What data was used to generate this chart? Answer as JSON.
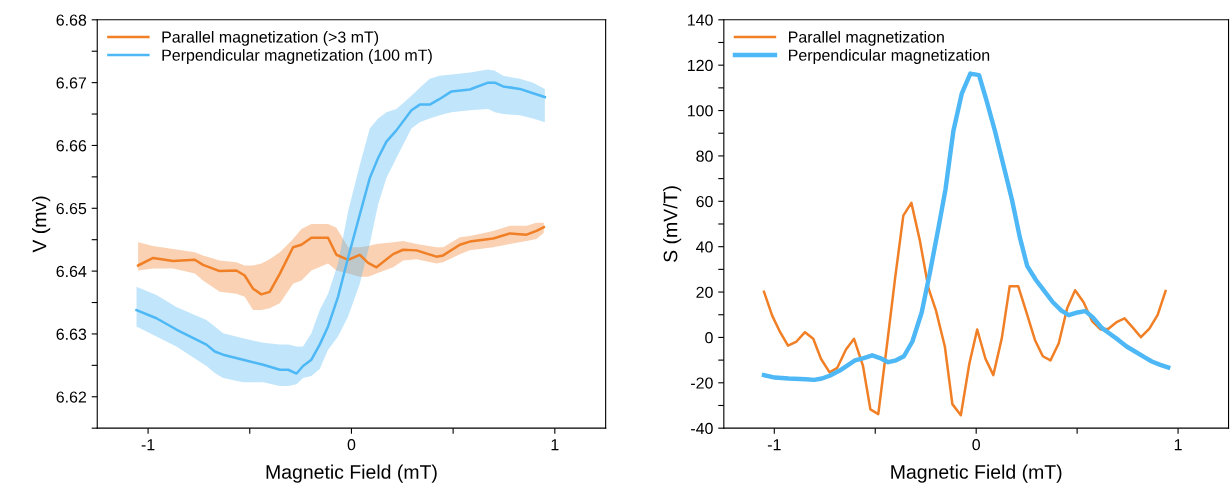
{
  "chart_data": [
    {
      "type": "line",
      "xlabel": "Magnetic Field (mT)",
      "ylabel": "V (mv)",
      "xlim": [
        -1.25,
        1.25
      ],
      "xticks": [
        {
          "value": -1,
          "label": "-1"
        },
        {
          "value": -0.5,
          "label": null
        },
        0,
        {
          "value": 0.5,
          "label": null
        },
        1
      ],
      "ylim": [
        6.615,
        6.68
      ],
      "yticks": [
        {
          "value": 6.615,
          "label": null
        },
        6.62,
        {
          "value": 6.625,
          "label": null
        },
        6.63,
        {
          "value": 6.635,
          "label": null
        },
        6.64,
        {
          "value": 6.645,
          "label": null
        },
        6.65,
        {
          "value": 6.655,
          "label": null
        },
        6.66,
        {
          "value": 6.665,
          "label": null
        },
        6.67,
        {
          "value": 6.675,
          "label": null
        },
        6.68
      ],
      "legend": "top left",
      "grid": false,
      "series": [
        {
          "name": "Parallel magnetization (>3 mT)",
          "color": "#f07f26",
          "x": [
            -1.049,
            -0.975,
            -0.877,
            -0.77,
            -0.73,
            -0.648,
            -0.566,
            -0.525,
            -0.484,
            -0.443,
            -0.402,
            -0.352,
            -0.287,
            -0.246,
            -0.197,
            -0.115,
            -0.074,
            -0.016,
            0.041,
            0.082,
            0.123,
            0.205,
            0.254,
            0.32,
            0.418,
            0.451,
            0.533,
            0.582,
            0.697,
            0.779,
            0.861,
            0.91,
            0.946
          ],
          "values": [
            6.6409,
            6.6421,
            6.6416,
            6.6418,
            6.641,
            6.64,
            6.6401,
            6.6393,
            6.6372,
            6.6363,
            6.6367,
            6.6396,
            6.6438,
            6.6442,
            6.6453,
            6.6453,
            6.6426,
            6.6418,
            6.6426,
            6.6413,
            6.6406,
            6.6427,
            6.6434,
            6.6433,
            6.6423,
            6.6425,
            6.6442,
            6.6447,
            6.6452,
            6.646,
            6.6458,
            6.6464,
            6.647
          ],
          "upper": [
            6.6446,
            6.644,
            6.6435,
            6.643,
            6.6425,
            6.6417,
            6.6414,
            6.6409,
            6.6409,
            6.6412,
            6.6419,
            6.643,
            6.6451,
            6.6467,
            6.6475,
            6.6475,
            6.6469,
            6.6438,
            6.6438,
            6.644,
            6.6443,
            6.6446,
            6.6448,
            6.6443,
            6.6438,
            6.6438,
            6.6454,
            6.6456,
            6.6464,
            6.6472,
            6.6472,
            6.6477,
            6.6477
          ],
          "lower": [
            6.6401,
            6.6404,
            6.6404,
            6.6396,
            6.6385,
            6.6367,
            6.6364,
            6.6359,
            6.6338,
            6.6338,
            6.6341,
            6.6349,
            6.638,
            6.6385,
            6.6401,
            6.6412,
            6.6401,
            6.6396,
            6.6391,
            6.6391,
            6.6396,
            6.6406,
            6.6417,
            6.6419,
            6.6412,
            6.6414,
            6.6427,
            6.6433,
            6.6438,
            6.6443,
            6.6448,
            6.6451,
            6.6461
          ]
        },
        {
          "name": "Perpendicular magnetization (100 mT)",
          "color": "#4db8f5",
          "x": [
            -1.057,
            -0.959,
            -0.861,
            -0.713,
            -0.672,
            -0.631,
            -0.533,
            -0.434,
            -0.352,
            -0.311,
            -0.27,
            -0.238,
            -0.197,
            -0.156,
            -0.115,
            -0.066,
            -0.016,
            0.041,
            0.09,
            0.131,
            0.172,
            0.221,
            0.295,
            0.336,
            0.385,
            0.434,
            0.492,
            0.582,
            0.672,
            0.705,
            0.746,
            0.828,
            0.893,
            0.951
          ],
          "values": [
            6.6338,
            6.6325,
            6.6307,
            6.6283,
            6.6272,
            6.6267,
            6.6259,
            6.6251,
            6.6243,
            6.6243,
            6.6237,
            6.6249,
            6.6259,
            6.6283,
            6.6312,
            6.6359,
            6.6422,
            6.649,
            6.6548,
            6.658,
            6.6606,
            6.6624,
            6.6656,
            6.6665,
            6.6665,
            6.6674,
            6.6686,
            6.6689,
            6.67,
            6.67,
            6.6694,
            6.669,
            6.6683,
            6.6677
          ],
          "upper": [
            6.6375,
            6.6362,
            6.6343,
            6.6322,
            6.6312,
            6.6301,
            6.6293,
            6.6286,
            6.6283,
            6.6283,
            6.628,
            6.628,
            6.6301,
            6.6338,
            6.6364,
            6.6412,
            6.6496,
            6.6569,
            6.6627,
            6.6643,
            6.6653,
            6.6658,
            6.6679,
            6.6692,
            6.6706,
            6.6711,
            6.6713,
            6.6716,
            6.6721,
            6.6719,
            6.6711,
            6.6706,
            6.67,
            6.669
          ],
          "lower": [
            6.6312,
            6.6296,
            6.628,
            6.6249,
            6.6238,
            6.623,
            6.6223,
            6.6223,
            6.6217,
            6.6217,
            6.622,
            6.623,
            6.6233,
            6.6244,
            6.6275,
            6.6296,
            6.6328,
            6.638,
            6.6443,
            6.6506,
            6.6548,
            6.658,
            6.6627,
            6.6637,
            6.6643,
            6.6648,
            6.6653,
            6.6656,
            6.6658,
            6.6653,
            6.665,
            6.6648,
            6.6643,
            6.6637
          ]
        }
      ]
    },
    {
      "type": "line",
      "xlabel": "Magnetic Field (mT)",
      "ylabel": "S (mV/T)",
      "xlim": [
        -1.25,
        1.25
      ],
      "xticks": [
        {
          "value": -1,
          "label": "-1"
        },
        {
          "value": -0.5,
          "label": null
        },
        0,
        {
          "value": 0.5,
          "label": null
        },
        1
      ],
      "ylim": [
        -40,
        140
      ],
      "yticks": [
        {
          "value": -40,
          "label": "-40"
        },
        {
          "value": -30,
          "label": null
        },
        {
          "value": -20,
          "label": "-20"
        },
        {
          "value": -10,
          "label": null
        },
        0,
        {
          "value": 10,
          "label": null
        },
        20,
        {
          "value": 30,
          "label": null
        },
        40,
        {
          "value": 50,
          "label": null
        },
        60,
        {
          "value": 70,
          "label": null
        },
        80,
        {
          "value": 90,
          "label": null
        },
        100,
        {
          "value": 110,
          "label": null
        },
        120,
        {
          "value": 130,
          "label": null
        },
        140
      ],
      "legend": "top left",
      "grid": false,
      "series": [
        {
          "name": "Parallel magnetization",
          "color": "#f07f26",
          "x": [
            -1.051,
            -1.01,
            -0.971,
            -0.932,
            -0.89,
            -0.848,
            -0.807,
            -0.769,
            -0.726,
            -0.688,
            -0.645,
            -0.605,
            -0.561,
            -0.524,
            -0.485,
            -0.443,
            -0.402,
            -0.361,
            -0.321,
            -0.279,
            -0.236,
            -0.199,
            -0.155,
            -0.118,
            -0.076,
            -0.034,
            0.005,
            0.046,
            0.085,
            0.127,
            0.166,
            0.208,
            0.249,
            0.291,
            0.33,
            0.368,
            0.409,
            0.451,
            0.49,
            0.532,
            0.574,
            0.617,
            0.655,
            0.698,
            0.735,
            0.777,
            0.816,
            0.858,
            0.899,
            0.938
          ],
          "values": [
            20.1,
            9.5,
            2.3,
            -3.6,
            -1.8,
            2.3,
            -0.6,
            -9.4,
            -15.4,
            -13.4,
            -5.3,
            -0.6,
            -12.4,
            -31.7,
            -33.8,
            -4.1,
            25.8,
            53.7,
            59.3,
            42.7,
            21.6,
            11.8,
            -4.1,
            -29.4,
            -34.3,
            -11.6,
            3.5,
            -9.4,
            -16.6,
            -0.3,
            22.6,
            22.6,
            11.0,
            -1.1,
            -8.3,
            -10.1,
            -2.6,
            13.0,
            20.8,
            15.5,
            7.2,
            3.5,
            3.8,
            6.9,
            8.4,
            4.2,
            0.1,
            3.9,
            9.9,
            20.4
          ]
        },
        {
          "name": "Perpendicular magnetization",
          "color": "#4db8f5",
          "x": [
            -1.051,
            -0.997,
            -0.929,
            -0.845,
            -0.802,
            -0.764,
            -0.726,
            -0.676,
            -0.6,
            -0.557,
            -0.515,
            -0.476,
            -0.436,
            -0.397,
            -0.358,
            -0.316,
            -0.27,
            -0.228,
            -0.186,
            -0.152,
            -0.113,
            -0.071,
            -0.029,
            0.014,
            0.051,
            0.093,
            0.135,
            0.177,
            0.216,
            0.253,
            0.296,
            0.338,
            0.38,
            0.422,
            0.459,
            0.502,
            0.541,
            0.579,
            0.622,
            0.662,
            0.704,
            0.747,
            0.789,
            0.831,
            0.87,
            0.912,
            0.951
          ],
          "values": [
            -16.6,
            -17.7,
            -18.1,
            -18.4,
            -18.7,
            -18.1,
            -16.9,
            -14.6,
            -10.1,
            -9.1,
            -7.9,
            -9.1,
            -10.9,
            -10.1,
            -8.3,
            -1.8,
            11.0,
            29.1,
            48.7,
            65.3,
            91.0,
            107.6,
            116.3,
            115.6,
            104.5,
            91.0,
            75.9,
            60.8,
            44.2,
            31.4,
            25.3,
            20.4,
            15.5,
            11.8,
            9.8,
            11.0,
            11.6,
            8.7,
            4.2,
            1.6,
            -1.1,
            -4.1,
            -6.3,
            -8.6,
            -10.6,
            -12.1,
            -13.2
          ]
        }
      ]
    }
  ]
}
